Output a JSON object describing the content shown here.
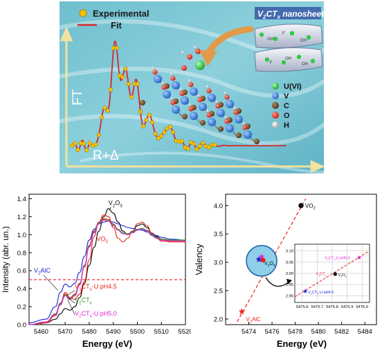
{
  "top_panel": {
    "legend": {
      "experimental": "Experimental",
      "fit": "Fit"
    },
    "ylabel": "FT",
    "xlabel": "R+Δ",
    "nanosheet_title_main": "V",
    "nanosheet_title_sub1": "2",
    "nanosheet_title_mid": "CT",
    "nanosheet_title_sub2": "x",
    "nanosheet_title_tail": " nanosheets",
    "atom_legend": [
      {
        "label": "U(VI)",
        "color": "#2ecc40"
      },
      {
        "label": "V",
        "color": "#1e73d8"
      },
      {
        "label": "C",
        "color": "#6b4a2b"
      },
      {
        "label": "O",
        "color": "#e0231c"
      },
      {
        "label": "H",
        "color": "#d8d8d8"
      }
    ],
    "sheet_labels": [
      "OH",
      "F",
      "OH",
      "F",
      "OH",
      "OH"
    ],
    "colors": {
      "bg": "#7fc7d6",
      "fit": "#d4282c",
      "marker": "#f5c200",
      "arrow": "#e09a4a"
    }
  },
  "chart_data": [
    {
      "type": "line",
      "xlabel": "Energy (eV)",
      "ylabel": "Intensity (abr. un.)",
      "xlim": [
        5455,
        5520
      ],
      "ylim": [
        0.0,
        1.45
      ],
      "xticks": [
        5460,
        5470,
        5480,
        5490,
        5500,
        5510,
        5520
      ],
      "yticks": [
        0.0,
        0.2,
        0.4,
        0.6,
        0.8,
        1.0,
        1.2,
        1.4
      ],
      "reference_line": 0.5,
      "series": [
        {
          "name": "V2O3",
          "color": "#000000",
          "x": [
            5455,
            5462,
            5466,
            5468,
            5470,
            5472,
            5474,
            5476,
            5478,
            5480,
            5482,
            5484,
            5486,
            5488,
            5490,
            5492,
            5494,
            5496,
            5498,
            5500,
            5502,
            5504,
            5506,
            5508,
            5510,
            5514,
            5520
          ],
          "y": [
            0.0,
            0.02,
            0.06,
            0.12,
            0.18,
            0.16,
            0.2,
            0.3,
            0.46,
            0.66,
            0.86,
            1.04,
            1.2,
            1.29,
            1.24,
            1.14,
            1.04,
            1.0,
            1.04,
            1.1,
            1.12,
            1.08,
            1.02,
            0.98,
            0.95,
            0.93,
            0.93
          ]
        },
        {
          "name": "VO2",
          "color": "#e8231c",
          "x": [
            5455,
            5462,
            5466,
            5468,
            5470,
            5472,
            5474,
            5476,
            5478,
            5480,
            5482,
            5484,
            5486,
            5488,
            5490,
            5492,
            5494,
            5496,
            5498,
            5500,
            5502,
            5504,
            5506,
            5508,
            5510,
            5514,
            5520
          ],
          "y": [
            0.0,
            0.02,
            0.1,
            0.22,
            0.36,
            0.3,
            0.28,
            0.34,
            0.48,
            0.72,
            0.98,
            1.14,
            1.22,
            1.2,
            1.08,
            0.96,
            0.92,
            0.96,
            1.04,
            1.12,
            1.14,
            1.1,
            1.02,
            0.96,
            0.93,
            0.92,
            0.92
          ]
        },
        {
          "name": "V2AlC",
          "color": "#1a22d6",
          "x": [
            5455,
            5462,
            5466,
            5468,
            5470,
            5472,
            5474,
            5476,
            5478,
            5480,
            5482,
            5484,
            5486,
            5488,
            5490,
            5492,
            5494,
            5496,
            5498,
            5500,
            5502,
            5504,
            5506,
            5508,
            5510,
            5514,
            5520
          ],
          "y": [
            0.02,
            0.06,
            0.2,
            0.36,
            0.45,
            0.42,
            0.46,
            0.58,
            0.76,
            0.94,
            1.06,
            1.12,
            1.14,
            1.15,
            1.14,
            1.12,
            1.1,
            1.08,
            1.07,
            1.06,
            1.05,
            1.03,
            1.01,
            0.99,
            0.97,
            0.95,
            0.94
          ]
        },
        {
          "name": "V2CTx-U pH4.5",
          "color": "#e8231c",
          "x": [
            5455,
            5462,
            5466,
            5468,
            5470,
            5472,
            5474,
            5476,
            5478,
            5480,
            5482,
            5484,
            5486,
            5488,
            5490,
            5492,
            5494,
            5496,
            5498,
            5500,
            5502,
            5504,
            5506,
            5508,
            5510,
            5514,
            5520
          ],
          "y": [
            0.0,
            0.03,
            0.12,
            0.24,
            0.34,
            0.3,
            0.34,
            0.46,
            0.66,
            0.88,
            1.04,
            1.14,
            1.18,
            1.17,
            1.12,
            1.06,
            1.02,
            1.01,
            1.03,
            1.06,
            1.07,
            1.05,
            1.0,
            0.97,
            0.95,
            0.94,
            0.94
          ]
        },
        {
          "name": "V2CTx",
          "color": "#2e9a2e",
          "x": [
            5455,
            5462,
            5466,
            5468,
            5470,
            5472,
            5474,
            5476,
            5478,
            5480,
            5482,
            5484,
            5486,
            5488,
            5490,
            5492,
            5494,
            5496,
            5498,
            5500,
            5502,
            5504,
            5506,
            5508,
            5510,
            5514,
            5520
          ],
          "y": [
            0.0,
            0.03,
            0.12,
            0.23,
            0.33,
            0.29,
            0.33,
            0.45,
            0.65,
            0.87,
            1.03,
            1.13,
            1.17,
            1.16,
            1.11,
            1.06,
            1.02,
            1.01,
            1.03,
            1.06,
            1.07,
            1.05,
            1.0,
            0.97,
            0.95,
            0.94,
            0.94
          ]
        },
        {
          "name": "V2CTx-U pH5.0",
          "color": "#e020d8",
          "x": [
            5455,
            5462,
            5466,
            5468,
            5470,
            5472,
            5474,
            5476,
            5478,
            5480,
            5482,
            5484,
            5486,
            5488,
            5490,
            5492,
            5494,
            5496,
            5498,
            5500,
            5502,
            5504,
            5506,
            5508,
            5510,
            5514,
            5520
          ],
          "y": [
            0.0,
            0.03,
            0.11,
            0.22,
            0.32,
            0.28,
            0.32,
            0.44,
            0.64,
            0.86,
            1.02,
            1.12,
            1.16,
            1.15,
            1.1,
            1.05,
            1.01,
            1.0,
            1.02,
            1.05,
            1.06,
            1.04,
            0.99,
            0.96,
            0.94,
            0.93,
            0.93
          ]
        }
      ],
      "annotations": [
        {
          "base": "V",
          "sub": "2",
          "base2": "O",
          "sub2": "3",
          "tail": "",
          "color": "#000000",
          "x": 5488,
          "y": 1.33
        },
        {
          "base": "VO",
          "sub": "2",
          "base2": "",
          "sub2": "",
          "tail": "",
          "color": "#e8231c",
          "x": 5483,
          "y": 0.93
        },
        {
          "base": "V",
          "sub": "2",
          "base2": "AlC",
          "sub2": "",
          "tail": "",
          "color": "#1a22d6",
          "x": 5457,
          "y": 0.58
        },
        {
          "base": "V",
          "sub": "2",
          "base2": "CT",
          "sub2": "x",
          "tail": "-U pH4.5",
          "color": "#e8231c",
          "x": 5474,
          "y": 0.4
        },
        {
          "base": "V",
          "sub": "2",
          "base2": "CT",
          "sub2": "x",
          "tail": "",
          "color": "#2e9a2e",
          "x": 5474,
          "y": 0.25
        },
        {
          "base": "V",
          "sub": "2",
          "base2": "CT",
          "sub2": "x",
          "tail": "-U pH5.0",
          "color": "#e020d8",
          "x": 5474,
          "y": 0.1
        }
      ]
    },
    {
      "type": "scatter",
      "xlabel": "Energy (eV)",
      "ylabel": "Valency",
      "xlim": [
        5472,
        5485
      ],
      "ylim": [
        1.9,
        4.2
      ],
      "xticks": [
        5474,
        5476,
        5478,
        5480,
        5482,
        5484
      ],
      "yticks": [
        2.0,
        2.5,
        3.0,
        3.5,
        4.0
      ],
      "points": [
        {
          "name": "VO2",
          "base": "VO",
          "sub": "2",
          "base2": "",
          "sub2": "",
          "tail": "",
          "x": 5478.5,
          "y": 4.0,
          "marker": "circle",
          "color": "#111111"
        },
        {
          "name": "V2AlC",
          "base": "V",
          "sub": "2",
          "base2": "AlC",
          "sub2": "",
          "tail": "",
          "x": 5473.4,
          "y": 2.13,
          "marker": "star",
          "color": "#e8231c"
        },
        {
          "name": "V2O3",
          "base": "V",
          "sub": "2",
          "base2": "O",
          "sub2": "3",
          "tail": "",
          "x": 5475.8,
          "y": 3.0,
          "marker": "circle",
          "color": "#111111"
        }
      ],
      "fit_line": {
        "x": [
          5473.0,
          5478.9
        ],
        "y": [
          1.95,
          4.12
        ],
        "color": "#e8231c"
      },
      "inset": {
        "xlim": [
          5475.55,
          5476.05
        ],
        "ylim": [
          2.87,
          3.13
        ],
        "xticks": [
          5475.6,
          5475.7,
          5475.8,
          5475.9,
          5476.0
        ],
        "yticks": [
          2.9,
          2.95,
          3.0,
          3.05,
          3.1
        ],
        "points": [
          {
            "name": "V2CTx-U pH5.0",
            "base": "V",
            "sub": "2",
            "base2": "CT",
            "sub2": "x",
            "tail": "-U pH5.0",
            "x": 5475.98,
            "y": 3.07,
            "marker": "star",
            "color": "#e020d8"
          },
          {
            "name": "V2CTx",
            "base": "V",
            "sub": "2",
            "base2": "CT",
            "sub2": "x",
            "tail": "",
            "x": 5475.82,
            "y": 2.995,
            "marker": "star",
            "color": "#e8231c"
          },
          {
            "name": "V2O3",
            "base": "V",
            "sub": "2",
            "base2": "O",
            "sub2": "3",
            "tail": "",
            "x": 5475.82,
            "y": 2.997,
            "marker": "circle",
            "color": "#111111"
          },
          {
            "name": "V2CTx-U pH4.5",
            "base": "V",
            "sub": "2",
            "base2": "CT",
            "sub2": "x",
            "tail": "-U pH4.5",
            "x": 5475.62,
            "y": 2.92,
            "marker": "star",
            "color": "#1a22d6"
          }
        ],
        "fit_line": {
          "x": [
            5475.55,
            5476.05
          ],
          "y": [
            2.895,
            3.1
          ],
          "color": "#e8231c"
        }
      },
      "magnifier_points": [
        {
          "name": "V2O3",
          "base": "V",
          "sub": "2",
          "base2": "O",
          "sub2": "3",
          "tail": ""
        }
      ]
    }
  ]
}
